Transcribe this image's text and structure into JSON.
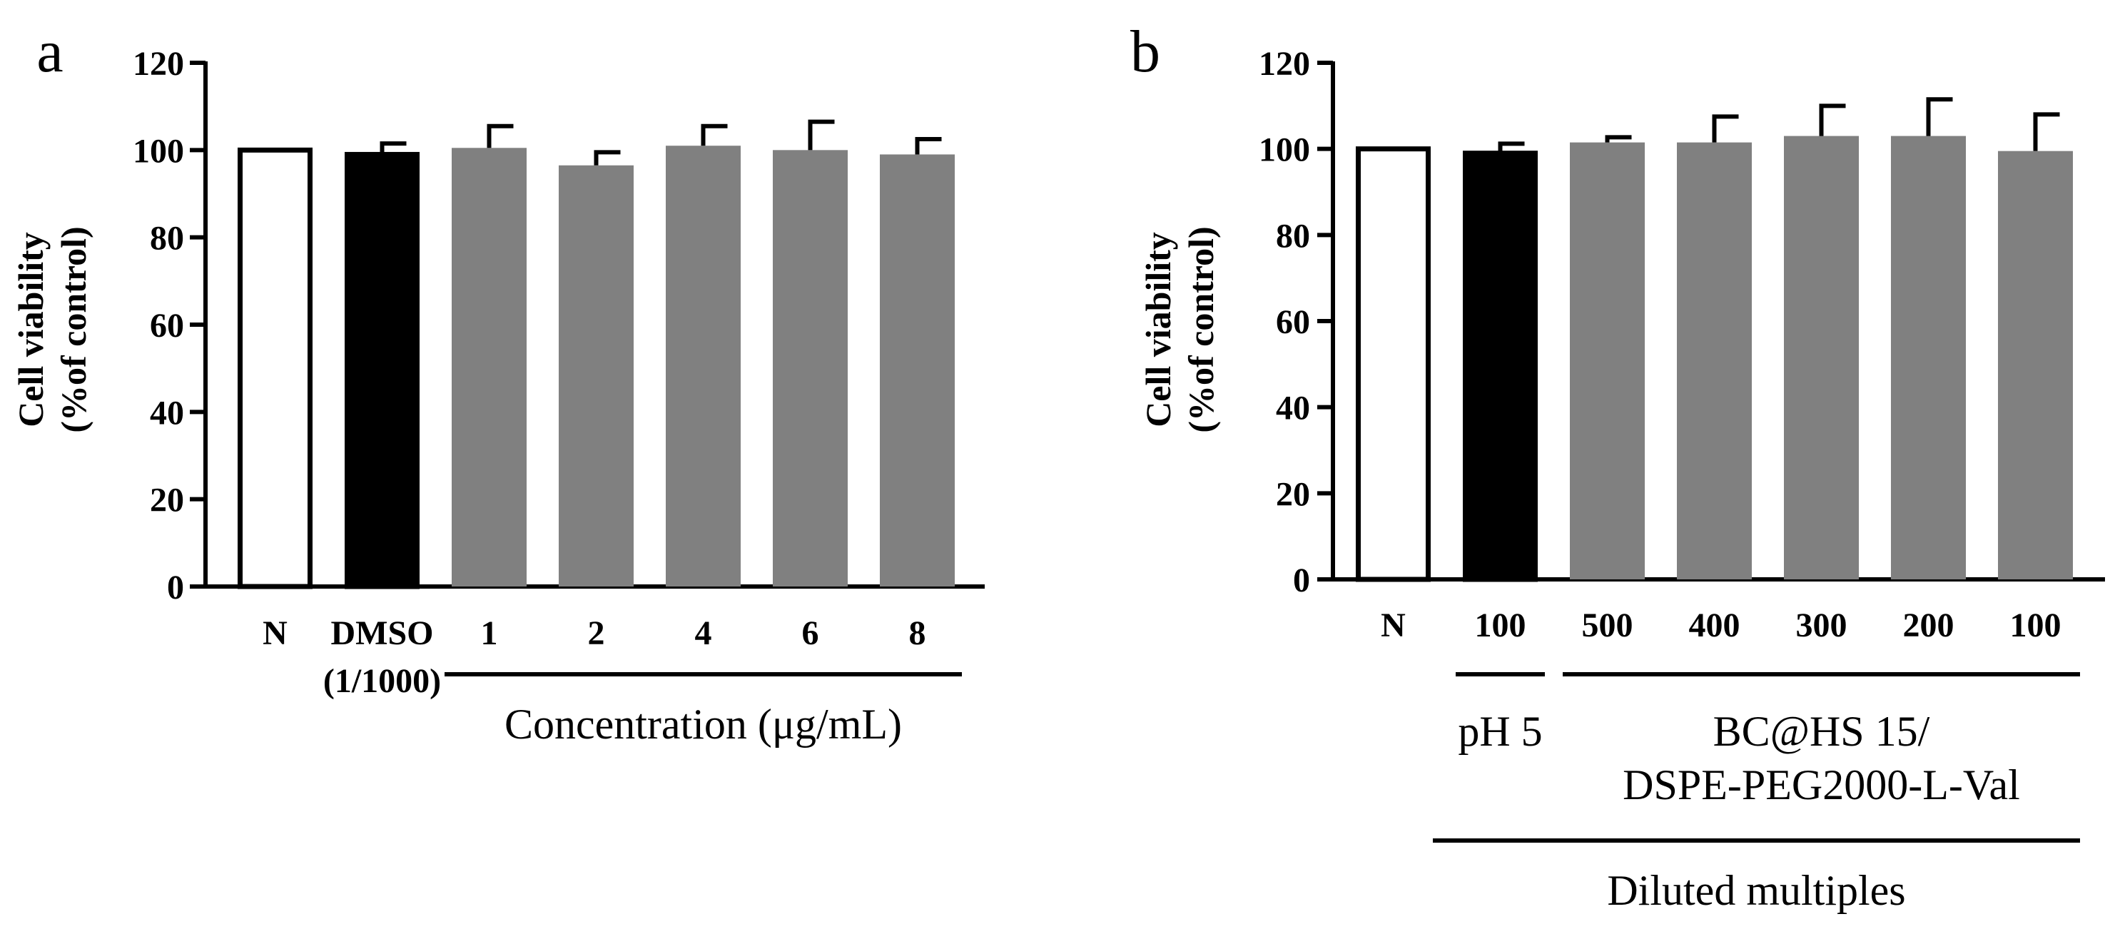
{
  "chart_data": [
    {
      "panel_label": "a",
      "type": "bar",
      "ylabel_line1": "Cell viability",
      "ylabel_line2": "(%of control)",
      "ylim": [
        0,
        120
      ],
      "yticks": [
        0,
        20,
        40,
        60,
        80,
        100,
        120
      ],
      "categories": [
        {
          "label": "N",
          "label2": "",
          "value": 100,
          "error": 0,
          "style": "white"
        },
        {
          "label": "DMSO",
          "label2": "(1/1000)",
          "value": 99,
          "error": 2.5,
          "style": "black"
        },
        {
          "label": "1",
          "label2": "",
          "value": 100.5,
          "error": 5,
          "style": "gray"
        },
        {
          "label": "2",
          "label2": "",
          "value": 96.5,
          "error": 3,
          "style": "gray"
        },
        {
          "label": "4",
          "label2": "",
          "value": 101,
          "error": 4.5,
          "style": "gray"
        },
        {
          "label": "6",
          "label2": "",
          "value": 100,
          "error": 6.5,
          "style": "gray"
        },
        {
          "label": "8",
          "label2": "",
          "value": 99,
          "error": 3.5,
          "style": "gray"
        }
      ],
      "group_labels": [
        {
          "text": "Concentration (μg/mL)",
          "from": 2,
          "to": 6
        }
      ],
      "outer_group_label": ""
    },
    {
      "panel_label": "b",
      "type": "bar",
      "ylabel_line1": "Cell viability",
      "ylabel_line2": "(%of control)",
      "ylim": [
        0,
        120
      ],
      "yticks": [
        0,
        20,
        40,
        60,
        80,
        100,
        120
      ],
      "categories": [
        {
          "label": "N",
          "label2": "",
          "value": 100,
          "error": 0,
          "style": "white"
        },
        {
          "label": "100",
          "label2": "",
          "value": 99,
          "error": 2.2,
          "style": "black"
        },
        {
          "label": "500",
          "label2": "",
          "value": 101.5,
          "error": 1.2,
          "style": "gray"
        },
        {
          "label": "400",
          "label2": "",
          "value": 101.5,
          "error": 6,
          "style": "gray"
        },
        {
          "label": "300",
          "label2": "",
          "value": 103,
          "error": 7,
          "style": "gray"
        },
        {
          "label": "200",
          "label2": "",
          "value": 103,
          "error": 8.5,
          "style": "gray"
        },
        {
          "label": "100",
          "label2": "",
          "value": 99.5,
          "error": 8.5,
          "style": "gray"
        }
      ],
      "group_labels": [
        {
          "text": "pH 5",
          "from": 1,
          "to": 1
        },
        {
          "text": "BC@HS 15/",
          "text2": "DSPE-PEG2000-L-Val",
          "from": 2,
          "to": 6
        }
      ],
      "outer_group_label": "Diluted multiples"
    }
  ],
  "colors": {
    "gray": "#808080",
    "black": "#000000",
    "white": "#ffffff",
    "axis": "#000000"
  }
}
